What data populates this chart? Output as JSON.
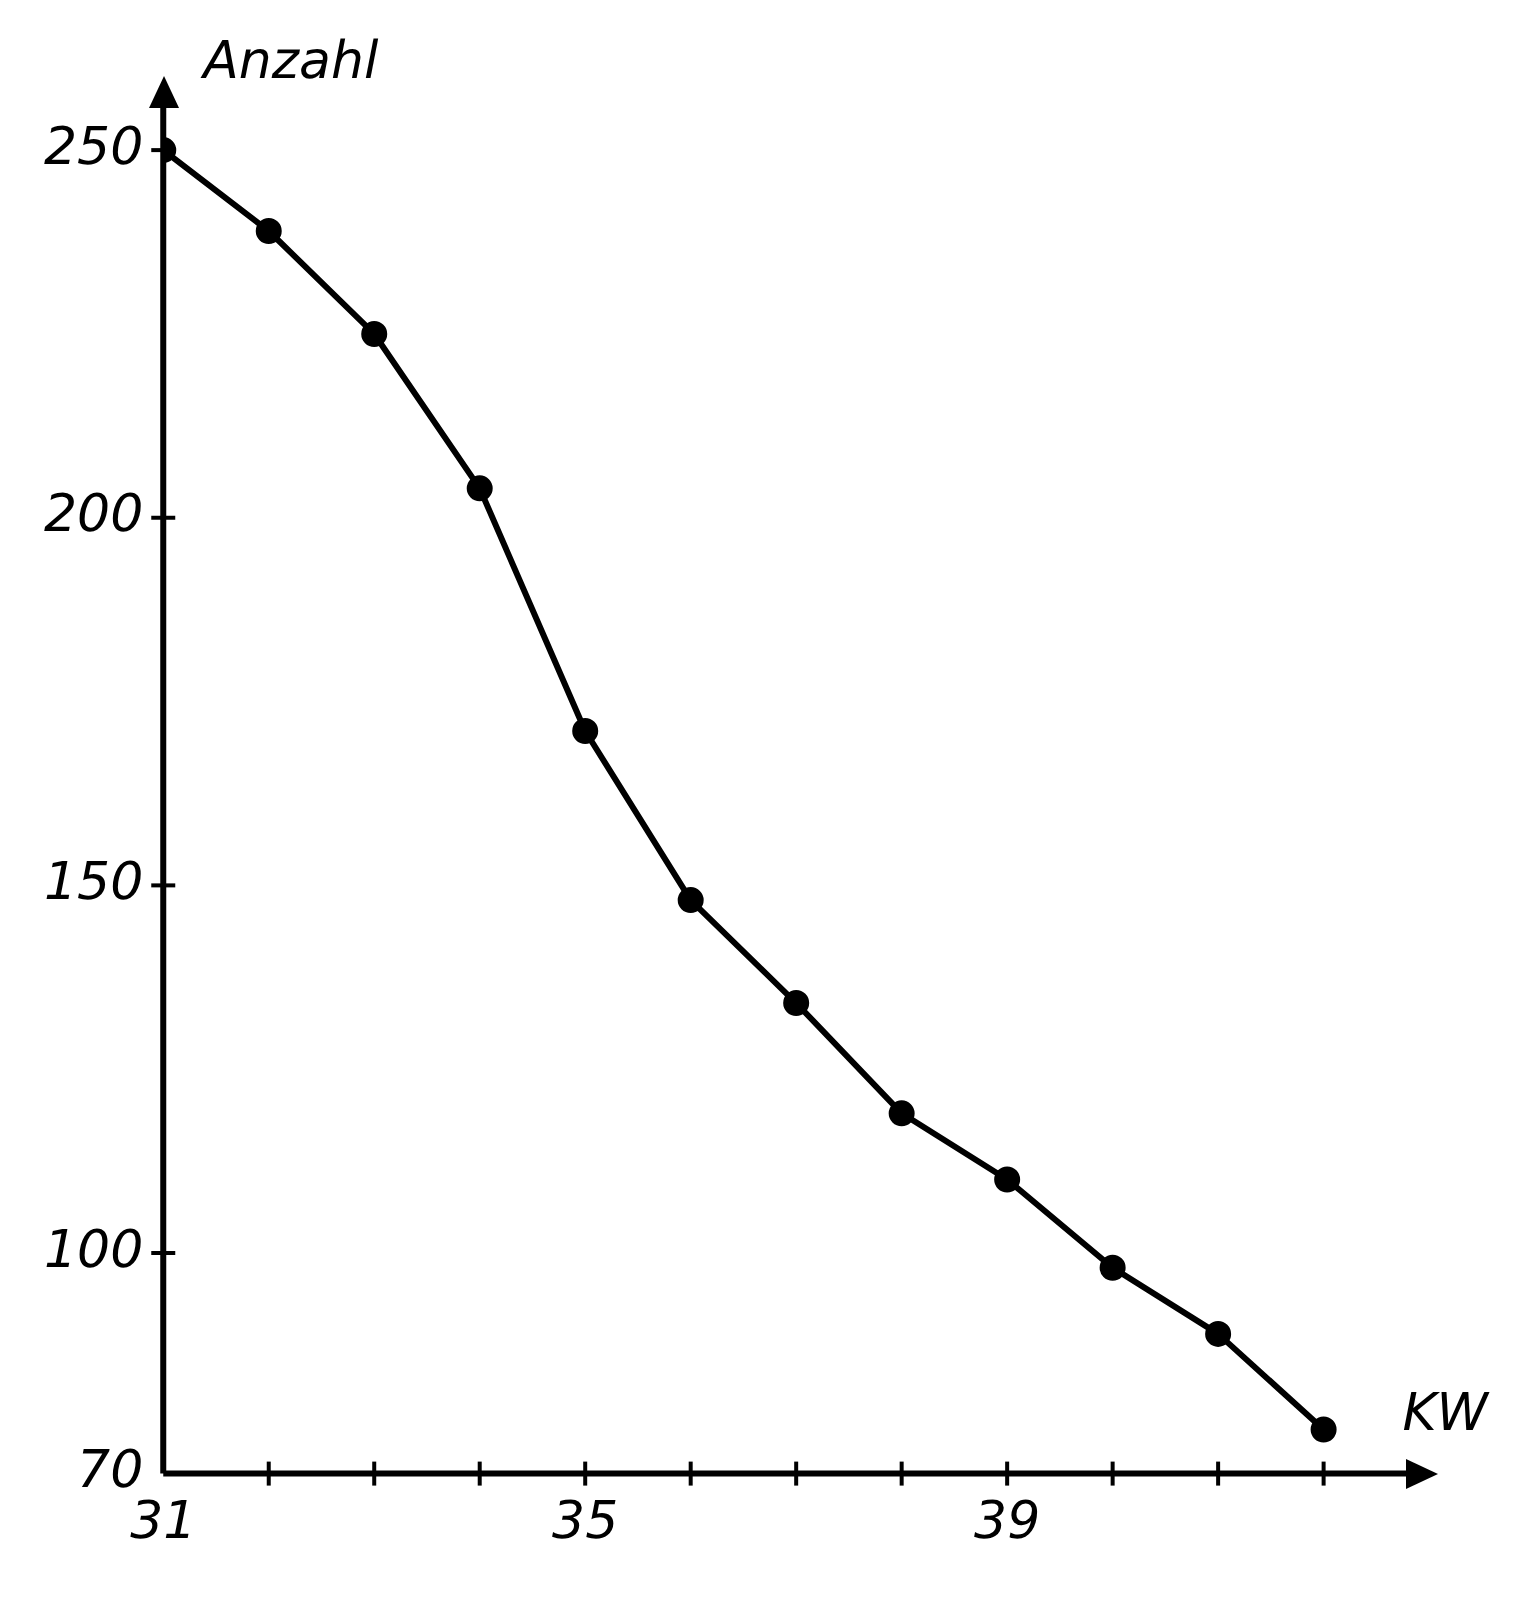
{
  "chart_data": {
    "type": "line",
    "xlabel": "KW",
    "ylabel": "Anzahl",
    "x": [
      31,
      32,
      33,
      34,
      35,
      36,
      37,
      38,
      39,
      40,
      41,
      42
    ],
    "series": [
      {
        "color": "#000000",
        "values": [
          250,
          239,
          225,
          204,
          171,
          148,
          134,
          119,
          110,
          98,
          89,
          76
        ]
      }
    ],
    "xlim": [
      31,
      42.8
    ],
    "ylim": [
      70,
      256
    ],
    "xticks": [
      31,
      {
        "value": 32,
        "label": null
      },
      {
        "value": 33,
        "label": null
      },
      {
        "value": 34,
        "label": null
      },
      35,
      {
        "value": 36,
        "label": null
      },
      {
        "value": 37,
        "label": null
      },
      {
        "value": 38,
        "label": null
      },
      39,
      {
        "value": 40,
        "label": null
      },
      {
        "value": 41,
        "label": null
      },
      {
        "value": 42,
        "label": null
      }
    ],
    "yticks": [
      70,
      100,
      150,
      200,
      250
    ],
    "grid": false,
    "legend": false,
    "marker": "circle",
    "line_style": "solid"
  }
}
